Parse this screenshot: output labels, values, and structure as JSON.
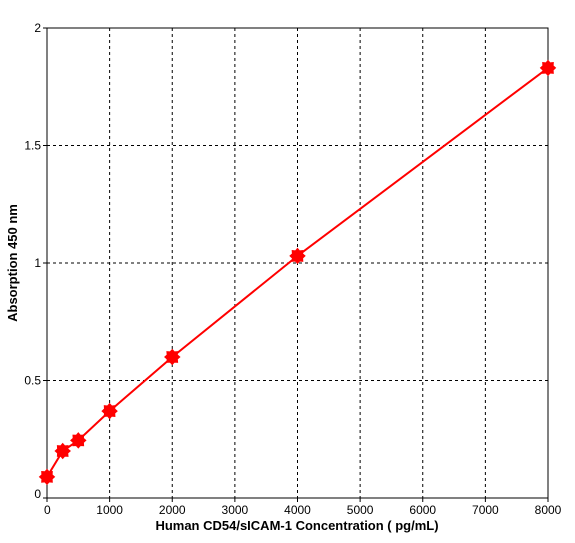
{
  "chart_data": {
    "type": "scatter",
    "title": "",
    "xlabel": "Human CD54/sICAM-1 Concentration ( pg/mL)",
    "ylabel": "Absorption 450 nm",
    "xlim": [
      0,
      8000
    ],
    "ylim": [
      0,
      2
    ],
    "xticks": [
      0,
      1000,
      2000,
      3000,
      4000,
      5000,
      6000,
      7000,
      8000
    ],
    "yticks": [
      0,
      0.5,
      1,
      1.5,
      2
    ],
    "xtick_labels": [
      "0",
      "1000",
      "2000",
      "3000",
      "4000",
      "5000",
      "6000",
      "7000",
      "8000"
    ],
    "ytick_labels": [
      "0",
      "0.5",
      "1",
      "1.5",
      "2"
    ],
    "grid": true,
    "fit_line": true,
    "series": [
      {
        "color": "#ff0000",
        "x": [
          0,
          250,
          500,
          1000,
          2000,
          4000,
          8000
        ],
        "y": [
          0.09,
          0.2,
          0.245,
          0.37,
          0.6,
          1.03,
          1.83
        ]
      }
    ]
  }
}
